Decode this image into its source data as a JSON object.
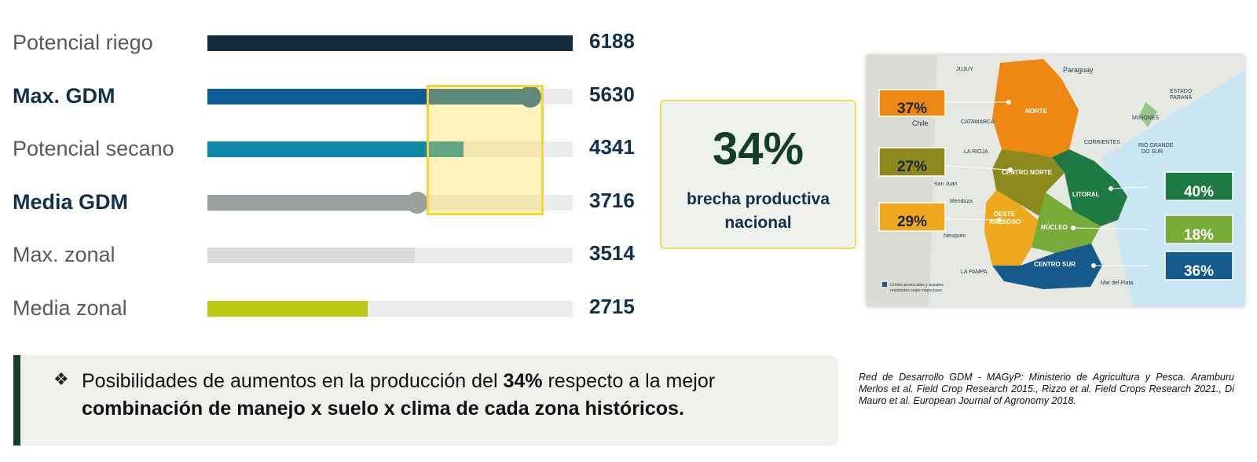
{
  "chart_data": {
    "type": "bar",
    "orientation": "horizontal",
    "categories": [
      "Potencial riego",
      "Max. GDM",
      "Potencial secano",
      "Media GDM",
      "Max. zonal",
      "Media zonal"
    ],
    "values": [
      6188,
      5630,
      4341,
      3716,
      3514,
      2715
    ],
    "colors": [
      "#142c3f",
      "#0d5c98",
      "#1288a6",
      "#9aa0a0",
      "#d8dadb",
      "#bcc813"
    ],
    "bold_labels": [
      false,
      true,
      false,
      true,
      false,
      false
    ],
    "xlim": [
      0,
      6188
    ],
    "title": "",
    "xlabel": "",
    "ylabel": ""
  },
  "gap": {
    "pct": "34%",
    "label_line1": "brecha productiva",
    "label_line2": "nacional"
  },
  "map": {
    "place_labels": {
      "jujuy": "JUJUY",
      "paraguay": "Paraguay",
      "estado_parana_1": "ESTADO",
      "estado_parana_2": "PARANÁ",
      "chile": "Chile",
      "catamarca": "CATAMARCA",
      "misiones": "MISIONES",
      "corrientes": "CORRIENTES",
      "rio_grande_1": "RIO GRANDE",
      "rio_grande_2": "DO SUR",
      "la_rioja": "LA RIOJA",
      "san_juan": "San Juan",
      "mendoza": "Mendoza",
      "neuquen": "Neuquén",
      "la_pampa": "LA PAMPA",
      "mar_del_plata": "Mar del Plata"
    },
    "regions": {
      "norte": "NORTE",
      "centro_norte": "CENTRO NORTE",
      "litoral": "LITORAL",
      "oeste_1": "OESTE",
      "oeste_2": "ARENOSO",
      "nucleo": "NÚCLEO",
      "centro_sur": "CENTRO SUR"
    },
    "gaps": {
      "norte": "37%",
      "centro_norte": "27%",
      "oeste_arenoso": "29%",
      "litoral": "40%",
      "nucleo": "18%",
      "centro_sur": "36%"
    },
    "legend_line1": "Límites provinciales y actuales",
    "legend_line2": "respetados según mapa base"
  },
  "note": {
    "bullet": "❖",
    "text_a": "Posibilidades de aumentos en la producción del ",
    "text_pct": "34%",
    "text_b": " respecto a la mejor ",
    "text_bold": "combinación de manejo x suelo x clima de cada zona históricos."
  },
  "references": "Red de Desarrollo GDM - MAGyP: Ministerio de Agricultura y Pesca. Aramburu Merlos et al. Field Crop Research 2015., Rizzo et al. Field Crops Research 2021., Di Mauro et al. European Journal of Agronomy 2018.",
  "colors": {
    "dark_green": "#143d2c",
    "highlight_yellow": "#f2d43d",
    "norte": "#ee8712",
    "centro_norte": "#8c8a1e",
    "oeste_arenoso": "#efa81c",
    "litoral": "#1e7a42",
    "nucleo": "#79ab38",
    "centro_sur": "#155a8a"
  }
}
